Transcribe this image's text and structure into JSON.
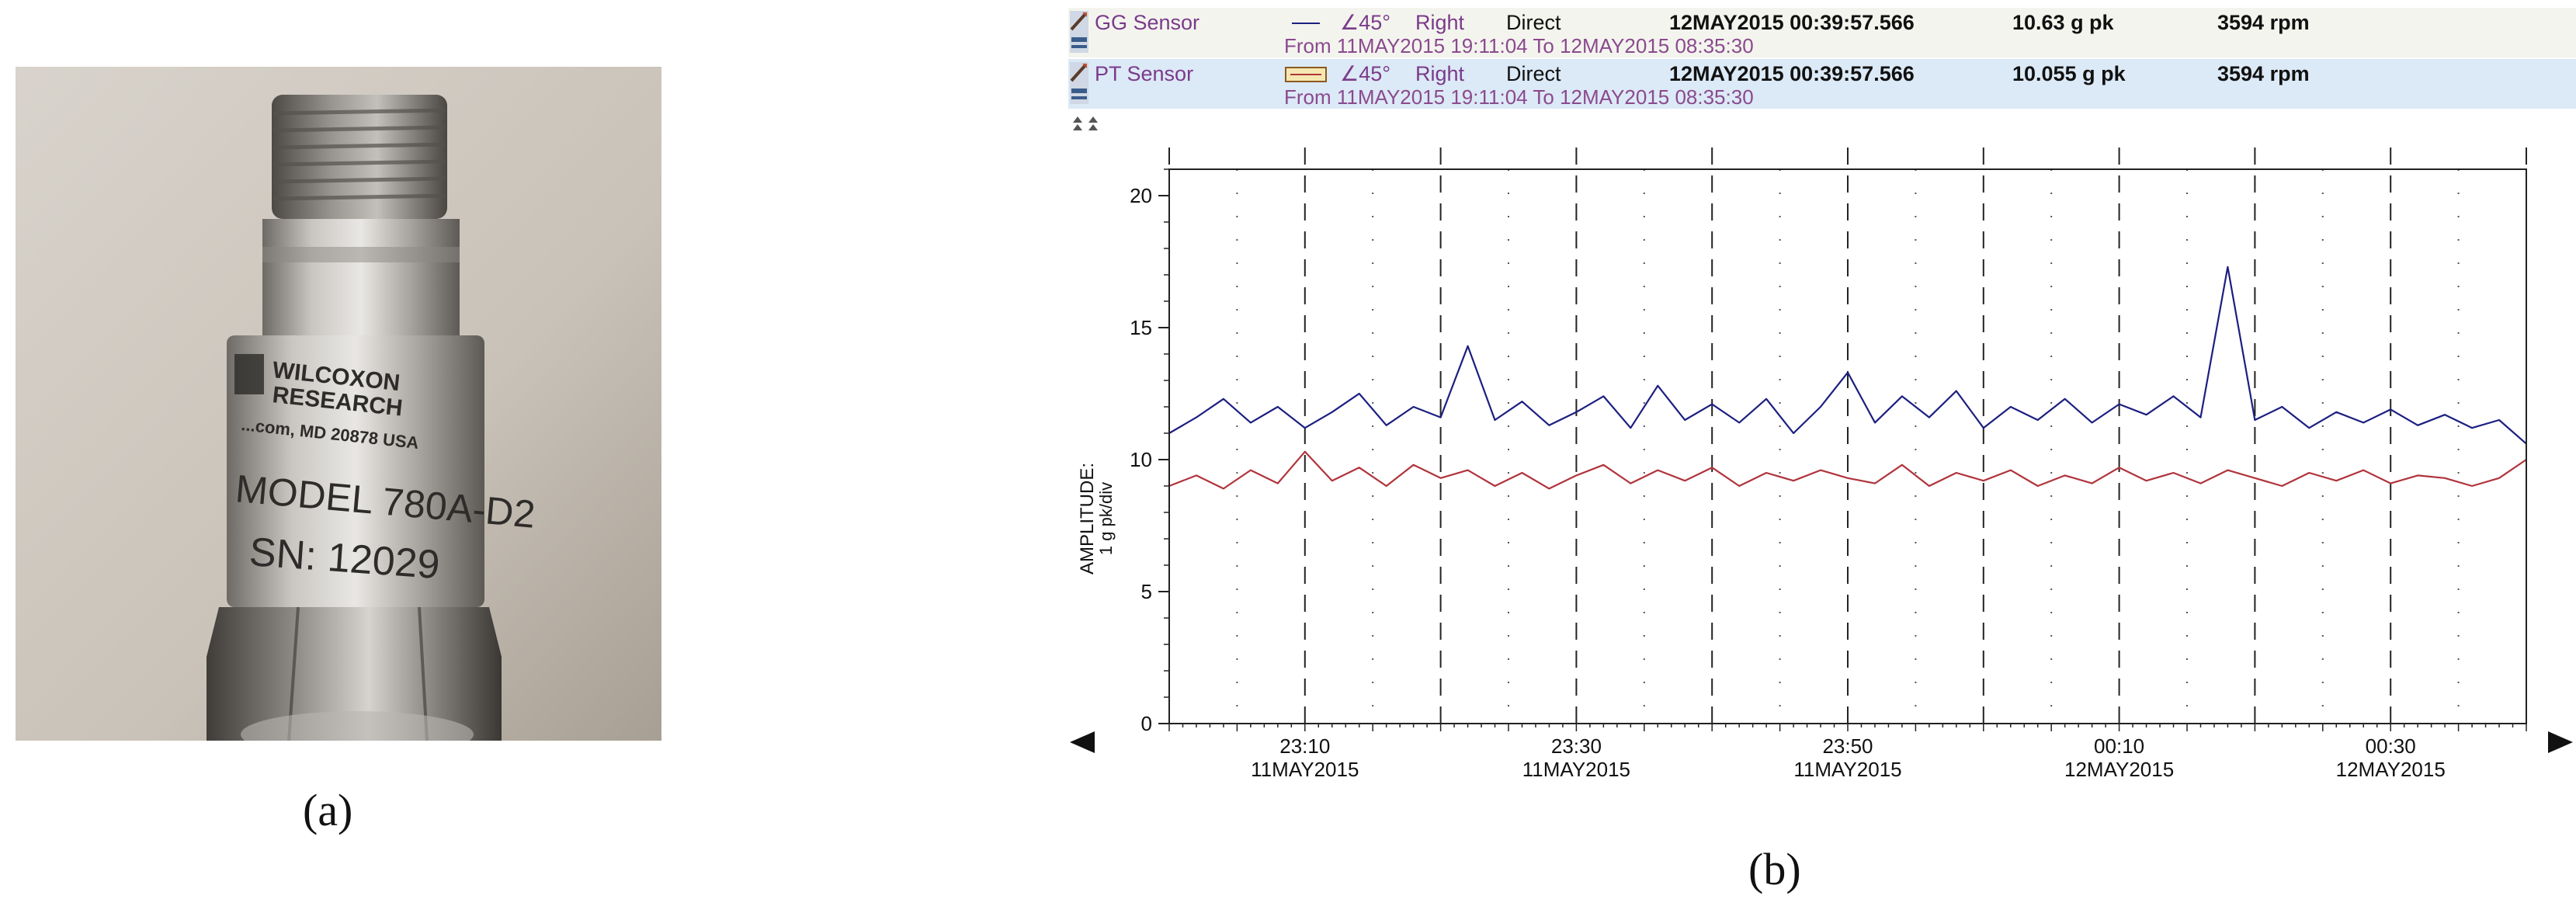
{
  "figure": {
    "label_a": "(a)",
    "label_b": "(b)"
  },
  "photo": {
    "text_lines": [
      "WILCOXON",
      "RESEARCH",
      "...com, MD 20878 USA",
      "MODEL 780A-D2",
      "SN: 12029"
    ]
  },
  "viewer": {
    "rows": [
      {
        "name": "GG Sensor",
        "angle": "∠45°",
        "direction": "Right",
        "mode": "Direct",
        "timestamp": "12MAY2015 00:39:57.566",
        "amplitude": "10.63 g pk",
        "speed": "3594 rpm",
        "range": "From 11MAY2015 19:11:04 To 12MAY2015 08:35:30"
      },
      {
        "name": "PT Sensor",
        "angle": "∠45°",
        "direction": "Right",
        "mode": "Direct",
        "timestamp": "12MAY2015 00:39:57.566",
        "amplitude": "10.055 g pk",
        "speed": "3594 rpm",
        "range": "From 11MAY2015 19:11:04 To 12MAY2015 08:35:30"
      }
    ],
    "colors": {
      "gg": "#1c1f80",
      "pt": "#b0343c",
      "name_purple": "#7a3b8a"
    }
  },
  "chart_data": {
    "type": "line",
    "ylabel": "AMPLITUDE:",
    "ylabel_unit": "1 g pk/div",
    "ylim": [
      0,
      21
    ],
    "y_ticks": [
      "0",
      "5",
      "10",
      "15",
      "20"
    ],
    "x_ticks": [
      {
        "time": "23:10",
        "date": "11MAY2015"
      },
      {
        "time": "23:30",
        "date": "11MAY2015"
      },
      {
        "time": "23:50",
        "date": "11MAY2015"
      },
      {
        "time": "00:10",
        "date": "12MAY2015"
      },
      {
        "time": "00:30",
        "date": "12MAY2015"
      }
    ],
    "xlim": [
      "11MAY2015 23:00",
      "12MAY2015 00:40"
    ],
    "grid": "dashed verticals every 10 min, dotted minor",
    "series": [
      {
        "name": "GG Sensor",
        "color": "#1c1f80",
        "x": [
          "23:00",
          "23:02",
          "23:04",
          "23:06",
          "23:08",
          "23:10",
          "23:12",
          "23:14",
          "23:16",
          "23:18",
          "23:20",
          "23:22",
          "23:24",
          "23:26",
          "23:28",
          "23:30",
          "23:32",
          "23:34",
          "23:36",
          "23:38",
          "23:40",
          "23:42",
          "23:44",
          "23:46",
          "23:48",
          "23:50",
          "23:52",
          "23:54",
          "23:56",
          "23:58",
          "00:00",
          "00:02",
          "00:04",
          "00:06",
          "00:08",
          "00:10",
          "00:12",
          "00:14",
          "00:16",
          "00:18",
          "00:20",
          "00:22",
          "00:24",
          "00:26",
          "00:28",
          "00:30",
          "00:32",
          "00:34",
          "00:36",
          "00:38",
          "00:40"
        ],
        "values": [
          11.0,
          11.6,
          12.3,
          11.4,
          12.0,
          11.2,
          11.8,
          12.5,
          11.3,
          12.0,
          11.6,
          14.3,
          11.5,
          12.2,
          11.3,
          11.8,
          12.4,
          11.2,
          12.8,
          11.5,
          12.1,
          11.4,
          12.3,
          11.0,
          12.0,
          13.3,
          11.4,
          12.4,
          11.6,
          12.6,
          11.2,
          12.0,
          11.5,
          12.3,
          11.4,
          12.1,
          11.7,
          12.4,
          11.6,
          17.3,
          11.5,
          12.0,
          11.2,
          11.8,
          11.4,
          11.9,
          11.3,
          11.7,
          11.2,
          11.5,
          10.6
        ]
      },
      {
        "name": "PT Sensor",
        "color": "#b0343c",
        "x": [
          "23:00",
          "23:02",
          "23:04",
          "23:06",
          "23:08",
          "23:10",
          "23:12",
          "23:14",
          "23:16",
          "23:18",
          "23:20",
          "23:22",
          "23:24",
          "23:26",
          "23:28",
          "23:30",
          "23:32",
          "23:34",
          "23:36",
          "23:38",
          "23:40",
          "23:42",
          "23:44",
          "23:46",
          "23:48",
          "23:50",
          "23:52",
          "23:54",
          "23:56",
          "23:58",
          "00:00",
          "00:02",
          "00:04",
          "00:06",
          "00:08",
          "00:10",
          "00:12",
          "00:14",
          "00:16",
          "00:18",
          "00:20",
          "00:22",
          "00:24",
          "00:26",
          "00:28",
          "00:30",
          "00:32",
          "00:34",
          "00:36",
          "00:38",
          "00:40"
        ],
        "values": [
          9.0,
          9.4,
          8.9,
          9.6,
          9.1,
          10.3,
          9.2,
          9.7,
          9.0,
          9.8,
          9.3,
          9.6,
          9.0,
          9.5,
          8.9,
          9.4,
          9.8,
          9.1,
          9.6,
          9.2,
          9.7,
          9.0,
          9.5,
          9.2,
          9.6,
          9.3,
          9.1,
          9.8,
          9.0,
          9.5,
          9.2,
          9.6,
          9.0,
          9.4,
          9.1,
          9.7,
          9.2,
          9.5,
          9.1,
          9.6,
          9.3,
          9.0,
          9.5,
          9.2,
          9.6,
          9.1,
          9.4,
          9.3,
          9.0,
          9.3,
          10.0
        ]
      }
    ]
  }
}
